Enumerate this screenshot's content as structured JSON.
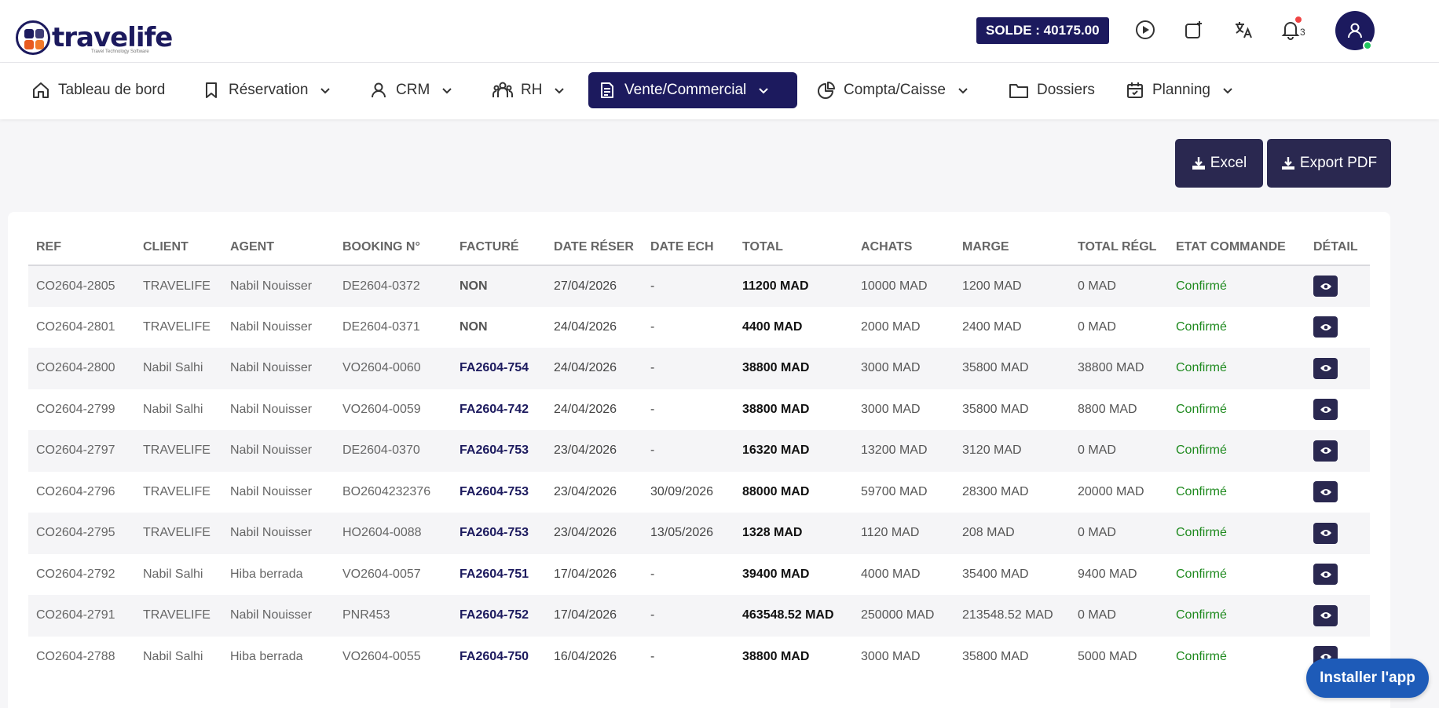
{
  "brand": {
    "name": "travelife",
    "tagline": "Travel Technology Software"
  },
  "header": {
    "solde": "SOLDE : 40175.00",
    "notifications_count": "3",
    "icons": [
      "play-icon",
      "add-window-icon",
      "translate-icon",
      "bell-icon",
      "user-icon"
    ]
  },
  "nav": [
    {
      "label": "Tableau de bord",
      "icon": "home-icon"
    },
    {
      "label": "Réservation",
      "icon": "bookmark-icon"
    },
    {
      "label": "CRM",
      "icon": "user-icon"
    },
    {
      "label": "RH",
      "icon": "team-icon"
    },
    {
      "label": "Vente/Commercial",
      "icon": "document-icon",
      "active": true
    },
    {
      "label": "Compta/Caisse",
      "icon": "pie-chart-icon"
    },
    {
      "label": "Dossiers",
      "icon": "folder-icon"
    },
    {
      "label": "Planning",
      "icon": "calendar-icon"
    }
  ],
  "actions": {
    "excel": "Excel",
    "pdf": "Export PDF"
  },
  "table": {
    "headers": [
      "REF",
      "CLIENT",
      "AGENT",
      "BOOKING N°",
      "FACTURÉ",
      "DATE RÉSER",
      "DATE ECH",
      "TOTAL",
      "ACHATS",
      "MARGE",
      "TOTAL RÉGL",
      "ETAT COMMANDE",
      "DÉTAIL"
    ],
    "rows": [
      [
        "CO2604-2805",
        "TRAVELIFE",
        "Nabil Nouisser",
        "DE2604-0372",
        "NON",
        "27/04/2026",
        "-",
        "11200 MAD",
        "10000 MAD",
        "1200 MAD",
        "0 MAD",
        "Confirmé"
      ],
      [
        "CO2604-2801",
        "TRAVELIFE",
        "Nabil Nouisser",
        "DE2604-0371",
        "NON",
        "24/04/2026",
        "-",
        "4400 MAD",
        "2000 MAD",
        "2400 MAD",
        "0 MAD",
        "Confirmé"
      ],
      [
        "CO2604-2800",
        "Nabil Salhi",
        "Nabil Nouisser",
        "VO2604-0060",
        "FA2604-754",
        "24/04/2026",
        "-",
        "38800 MAD",
        "3000 MAD",
        "35800 MAD",
        "38800 MAD",
        "Confirmé"
      ],
      [
        "CO2604-2799",
        "Nabil Salhi",
        "Nabil Nouisser",
        "VO2604-0059",
        "FA2604-742",
        "24/04/2026",
        "-",
        "38800 MAD",
        "3000 MAD",
        "35800 MAD",
        "8800 MAD",
        "Confirmé"
      ],
      [
        "CO2604-2797",
        "TRAVELIFE",
        "Nabil Nouisser",
        "DE2604-0370",
        "FA2604-753",
        "23/04/2026",
        "-",
        "16320 MAD",
        "13200 MAD",
        "3120 MAD",
        "0 MAD",
        "Confirmé"
      ],
      [
        "CO2604-2796",
        "TRAVELIFE",
        "Nabil Nouisser",
        "BO2604232376",
        "FA2604-753",
        "23/04/2026",
        "30/09/2026",
        "88000 MAD",
        "59700 MAD",
        "28300 MAD",
        "20000 MAD",
        "Confirmé"
      ],
      [
        "CO2604-2795",
        "TRAVELIFE",
        "Nabil Nouisser",
        "HO2604-0088",
        "FA2604-753",
        "23/04/2026",
        "13/05/2026",
        "1328 MAD",
        "1120 MAD",
        "208 MAD",
        "0 MAD",
        "Confirmé"
      ],
      [
        "CO2604-2792",
        "Nabil Salhi",
        "Hiba berrada",
        "VO2604-0057",
        "FA2604-751",
        "17/04/2026",
        "-",
        "39400 MAD",
        "4000 MAD",
        "35400 MAD",
        "9400 MAD",
        "Confirmé"
      ],
      [
        "CO2604-2791",
        "TRAVELIFE",
        "Nabil Nouisser",
        "PNR453",
        "FA2604-752",
        "17/04/2026",
        "-",
        "463548.52 MAD",
        "250000 MAD",
        "213548.52 MAD",
        "0 MAD",
        "Confirmé"
      ],
      [
        "CO2604-2788",
        "Nabil Salhi",
        "Hiba berrada",
        "VO2604-0055",
        "FA2604-750",
        "16/04/2026",
        "-",
        "38800 MAD",
        "3000 MAD",
        "35800 MAD",
        "5000 MAD",
        "Confirmé"
      ]
    ]
  },
  "install_label": "Installer l'app",
  "colors": {
    "primary": "#1c1a5e",
    "success": "#1f8a1f",
    "install": "#1e5bb8",
    "notification": "#ef4444"
  }
}
